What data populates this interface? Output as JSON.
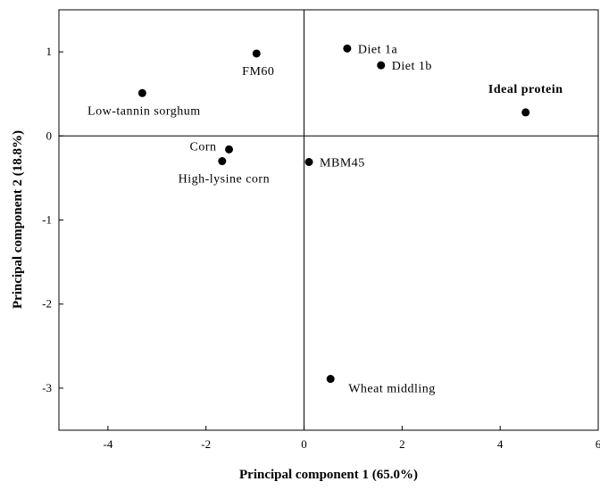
{
  "chart_data": {
    "type": "scatter",
    "xlabel": "Principal component 1 (65.0%)",
    "ylabel": "Principal component 2 (18.8%)",
    "xlim": [
      -5,
      6
    ],
    "ylim": [
      -3.5,
      1.5
    ],
    "x_ticks": [
      -4,
      -2,
      0,
      2,
      4,
      6
    ],
    "y_ticks": [
      1,
      0,
      -1,
      -2,
      -3
    ],
    "x_tick_labels": [
      "-4",
      "-2",
      "0",
      "2",
      "4",
      "6"
    ],
    "y_tick_labels": [
      "1",
      "0",
      "-1",
      "-2",
      "-3"
    ],
    "reference_lines": {
      "x": 0,
      "y": 0
    },
    "grid": false,
    "points": [
      {
        "label": "Diet 1a",
        "x": 0.88,
        "y": 1.04,
        "bold": false,
        "label_side": "right"
      },
      {
        "label": "Diet 1b",
        "x": 1.57,
        "y": 0.84,
        "bold": false,
        "label_side": "right"
      },
      {
        "label": "FM60",
        "x": -0.97,
        "y": 0.98,
        "bold": false,
        "label_side": "below"
      },
      {
        "label": "Low-tannin sorghum",
        "x": -3.3,
        "y": 0.51,
        "bold": false,
        "label_side": "below"
      },
      {
        "label": "Ideal protein",
        "x": 4.52,
        "y": 0.28,
        "bold": true,
        "label_side": "above"
      },
      {
        "label": "Corn",
        "x": -1.53,
        "y": -0.16,
        "bold": false,
        "label_side": "left"
      },
      {
        "label": "High-lysine corn",
        "x": -1.67,
        "y": -0.3,
        "bold": false,
        "label_side": "below"
      },
      {
        "label": "MBM45",
        "x": 0.1,
        "y": -0.31,
        "bold": false,
        "label_side": "right"
      },
      {
        "label": "Wheat middling",
        "x": 0.54,
        "y": -2.89,
        "bold": false,
        "label_side": "right-below"
      }
    ]
  }
}
